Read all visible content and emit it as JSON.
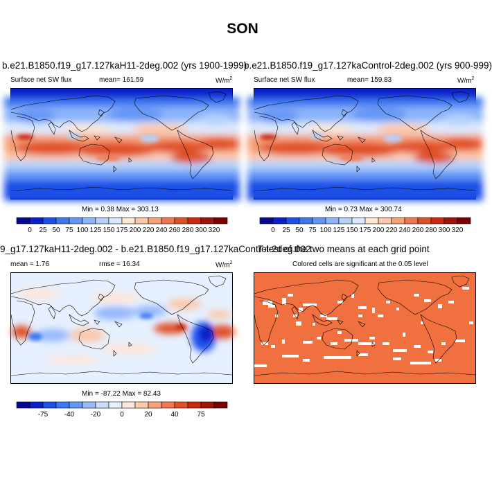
{
  "figure": {
    "title": "SON"
  },
  "panels": [
    {
      "id": "case",
      "title": "b.e21.B1850.f19_g17.127kaH11-2deg.002 (yrs 1900-1999)",
      "variable": "Surface net SW flux",
      "stat_label": "mean= 161.59",
      "units": "W/m",
      "units_exp": "2",
      "minmax": "Min =   0.38 Max = 303.13",
      "colorbar_labels": [
        "0",
        "25",
        "50",
        "75",
        "100",
        "125",
        "150",
        "175",
        "200",
        "220",
        "240",
        "260",
        "280",
        "300",
        "320"
      ]
    },
    {
      "id": "control",
      "title": "b.e21.B1850.f19_g17.127kaControl-2deg.002 (yrs 900-999)",
      "variable": "Surface net SW flux",
      "stat_label": "mean= 159.83",
      "units": "W/m",
      "units_exp": "2",
      "minmax": "Min =   0.73 Max = 300.74",
      "colorbar_labels": [
        "0",
        "25",
        "50",
        "75",
        "100",
        "125",
        "150",
        "175",
        "200",
        "220",
        "240",
        "260",
        "280",
        "300",
        "320"
      ]
    },
    {
      "id": "difference",
      "title": "9_g17.127kaH11-2deg.002 - b.e21.B1850.f19_g17.127kaControl-2deg.002",
      "mean_label": "mean =   1.76",
      "rmse_label": "rmse =  16.34",
      "units": "W/m",
      "units_exp": "2",
      "minmax": "Min = -87.22 Max =  82.43",
      "colorbar_labels": [
        "-75",
        "-40",
        "-20",
        "0",
        "20",
        "40",
        "75"
      ]
    },
    {
      "id": "significance",
      "title": "T-test of the two means at each grid point",
      "subtitle": "Colored cells are significant at the 0.05 level"
    }
  ],
  "colors": {
    "flux_scale": [
      "#08088e",
      "#0b20c8",
      "#1e50e6",
      "#3c78f0",
      "#6496f5",
      "#8cb4fa",
      "#b4d2fc",
      "#dce9fd",
      "#fde6d2",
      "#fcc8aa",
      "#f8a078",
      "#f07850",
      "#e05028",
      "#c82a12",
      "#a01408",
      "#780000"
    ],
    "diff_scale": [
      "#08088e",
      "#0b20c8",
      "#1e50e6",
      "#3c78f0",
      "#6496f5",
      "#96b9fa",
      "#c8dcfd",
      "#e6f0fe",
      "#fde6dc",
      "#fcc8aa",
      "#f8a078",
      "#f07850",
      "#e05028",
      "#c82a12",
      "#a01408",
      "#780000"
    ],
    "significant": "#f07040"
  }
}
